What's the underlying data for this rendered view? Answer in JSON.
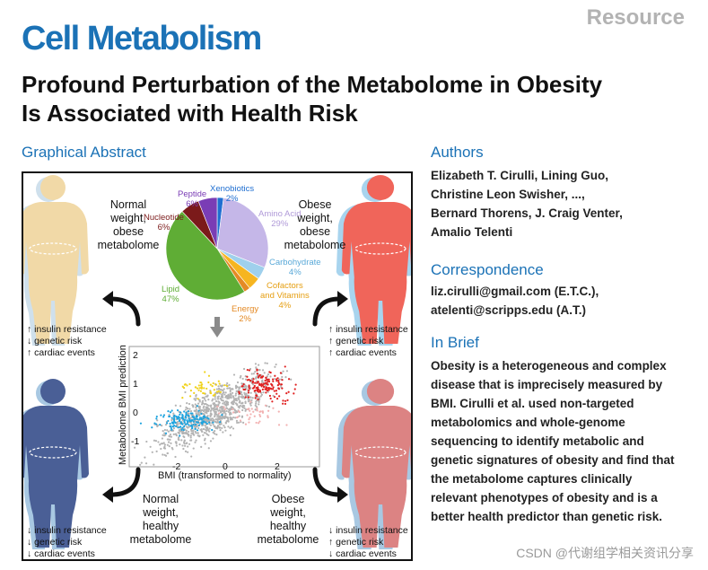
{
  "header": {
    "resource": "Resource",
    "journal": "Cell Metabolism",
    "title_line1": "Profound Perturbation of the Metabolome in Obesity",
    "title_line2": "Is Associated with Health Risk"
  },
  "graphical_abstract": {
    "heading": "Graphical Abstract",
    "labels": {
      "tl": [
        "Normal",
        "weight,",
        "obese",
        "metabolome"
      ],
      "tr": [
        "Obese",
        "weight,",
        "obese",
        "metabolome"
      ],
      "bl": [
        "Normal",
        "weight,",
        "healthy",
        "metabolome"
      ],
      "br": [
        "Obese",
        "weight,",
        "healthy",
        "metabolome"
      ]
    },
    "risk_tl": [
      "↑ insulin resistance",
      "↓ genetic risk",
      "↑ cardiac events"
    ],
    "risk_tr": [
      "↑ insulin resistance",
      "↑ genetic risk",
      "↑ cardiac events"
    ],
    "risk_bl": [
      "↓ insulin resistance",
      "↓ genetic risk",
      "↓ cardiac events"
    ],
    "risk_br": [
      "↓ insulin resistance",
      "↑ genetic risk",
      "↓ cardiac events"
    ],
    "pie": [
      {
        "label": "Xenobiotics",
        "pct": "2%",
        "value": 2,
        "color": "#1f6fd1"
      },
      {
        "label": "Amino Acid",
        "pct": "29%",
        "value": 29,
        "color": "#c5b7e8"
      },
      {
        "label": "Carbohydrate",
        "pct": "4%",
        "value": 4,
        "color": "#9fd0ec"
      },
      {
        "label": "Cofactors and Vitamins",
        "pct": "4%",
        "value": 4,
        "color": "#f6b520"
      },
      {
        "label": "Energy",
        "pct": "2%",
        "value": 2,
        "color": "#e48a25"
      },
      {
        "label": "Lipid",
        "pct": "47%",
        "value": 47,
        "color": "#5fad35"
      },
      {
        "label": "Nucleotide",
        "pct": "6%",
        "value": 6,
        "color": "#7b1a1a"
      },
      {
        "label": "Peptide",
        "pct": "6%",
        "value": 6,
        "color": "#7a3db5"
      }
    ],
    "scatter": {
      "xlabel": "BMI (transformed to normality)",
      "ylabel": "Metabolome BMI prediction",
      "xticks": [
        "-2",
        "0",
        "2"
      ],
      "yticks": [
        "2",
        "1",
        "0",
        "-1"
      ]
    }
  },
  "authors": {
    "heading": "Authors",
    "lines": [
      "Elizabeth T. Cirulli, Lining Guo,",
      "Christine Leon Swisher, ...,",
      "Bernard Thorens, J. Craig Venter,",
      "Amalio Telenti"
    ]
  },
  "correspondence": {
    "heading": "Correspondence",
    "lines": [
      "liz.cirulli@gmail.com (E.T.C.),",
      "atelenti@scripps.edu (A.T.)"
    ]
  },
  "in_brief": {
    "heading": "In Brief",
    "lines": [
      "Obesity is a heterogeneous and complex",
      "disease that is imprecisely measured by",
      "BMI. Cirulli et al. used non-targeted",
      "metabolomics and whole-genome",
      "sequencing to identify metabolic and",
      "genetic signatures of obesity and find that",
      "the metabolome captures clinically",
      "relevant phenotypes of obesity and is a",
      "better health predictor than genetic risk."
    ]
  },
  "watermark": "CSDN @代谢组学相关资讯分享"
}
